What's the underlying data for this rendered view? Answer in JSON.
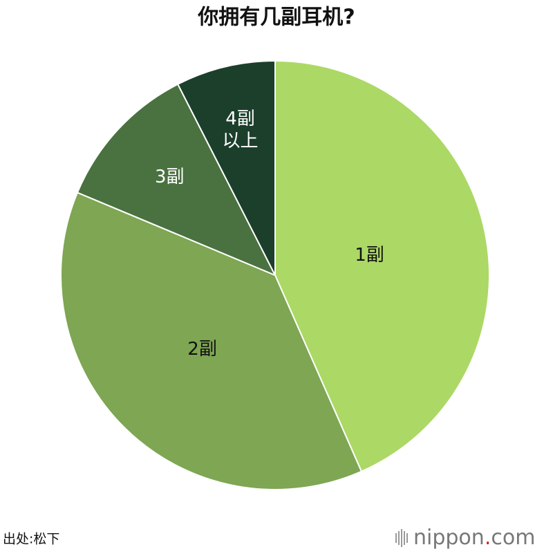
{
  "chart_data": {
    "type": "pie",
    "title": "你拥有几副耳机?",
    "categories": [
      "1副",
      "2副",
      "3副",
      "4副以上"
    ],
    "values": [
      43.4,
      37.9,
      11.2,
      7.5
    ],
    "colors": [
      "#acd866",
      "#7ea653",
      "#4a7240",
      "#1c3f2c"
    ],
    "source": "出处:松下",
    "logo": {
      "name": "nippon",
      "dot": ".",
      "domain": "com"
    }
  }
}
